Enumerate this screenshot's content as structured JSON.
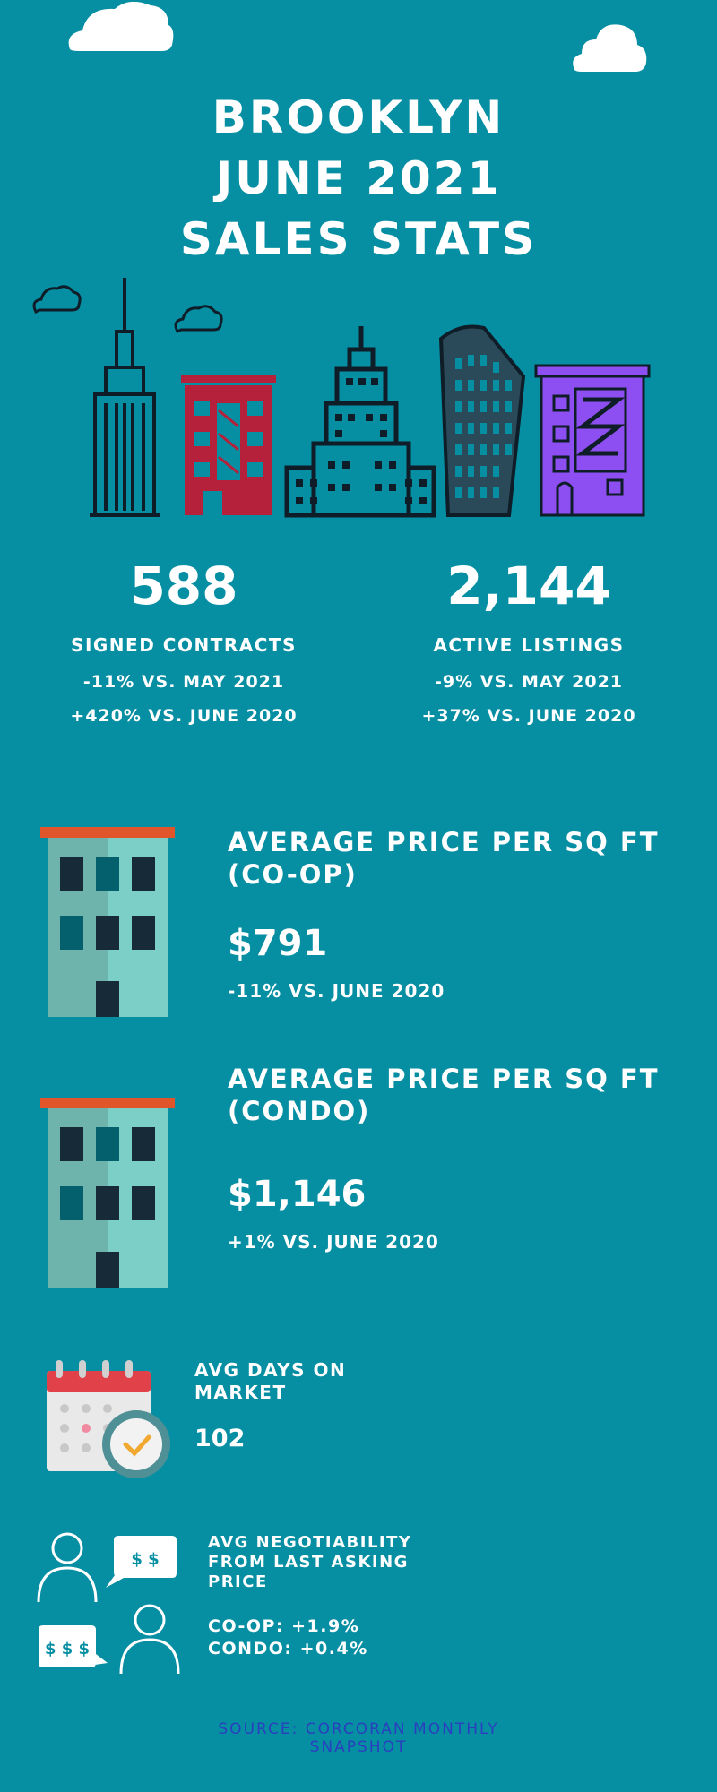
{
  "header": {
    "title_lines": [
      "BROOKLYN",
      "JUNE 2021",
      "SALES STATS"
    ]
  },
  "stats": {
    "contracts": {
      "value": "588",
      "label": "SIGNED CONTRACTS",
      "change_month": "-11% VS. MAY 2021",
      "change_year": "+420% VS. JUNE 2020"
    },
    "listings": {
      "value": "2,144",
      "label": "ACTIVE LISTINGS",
      "change_month": "-9% VS. MAY 2021",
      "change_year": "+37% VS. JUNE 2020"
    }
  },
  "coop": {
    "title": "AVERAGE PRICE PER SQ FT (CO-OP)",
    "value": "$791",
    "change": "-11% VS. JUNE 2020"
  },
  "condo": {
    "title": "AVERAGE PRICE PER SQ FT (CONDO)",
    "value": "$1,146",
    "change": "+1% VS. JUNE 2020"
  },
  "days": {
    "title": "AVG DAYS ON MARKET",
    "value": "102"
  },
  "negotiability": {
    "title": "AVG NEGOTIABILITY FROM LAST ASKING PRICE",
    "coop": "CO-OP: +1.9%",
    "condo": "CONDO: +0.4%",
    "bubble_top": "$ $",
    "bubble_bottom": "$ $ $"
  },
  "footer": {
    "source": "SOURCE: CORCORAN MONTHLY SNAPSHOT"
  },
  "colors": {
    "background": "#068ea2",
    "red_building": "#b5203a",
    "purple_building": "#8e4ff2",
    "teal_building": "#7ccfc6",
    "roof": "#e0552a",
    "source_text": "#2a3fbf"
  },
  "icons": [
    "cloud-icon",
    "skyline-illustration",
    "building-icon",
    "calendar-clock-icon",
    "people-chat-icon"
  ]
}
